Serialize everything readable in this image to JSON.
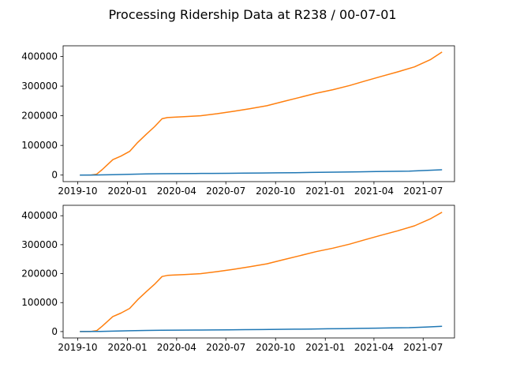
{
  "figure": {
    "title": "Processing Ridership Data at R238 / 00-07-01"
  },
  "colors": {
    "series_blue": "#1f77b4",
    "series_orange": "#ff7f0e",
    "axes": "#000000",
    "background": "#ffffff"
  },
  "chart_data": [
    {
      "type": "line",
      "position": "top",
      "title": "",
      "xlabel": "",
      "ylabel": "",
      "grid": false,
      "x_axis_type": "date",
      "xlim": [
        "2019-09-04",
        "2021-08-28"
      ],
      "ylim": [
        -22000,
        436000
      ],
      "x_ticks": [
        "2019-10",
        "2020-01",
        "2020-04",
        "2020-07",
        "2020-10",
        "2021-01",
        "2021-04",
        "2021-07"
      ],
      "y_ticks": [
        0,
        100000,
        200000,
        300000,
        400000
      ],
      "series": [
        {
          "color": "#ff7f0e",
          "x": [
            "2019-10-05",
            "2019-10-25",
            "2019-11-05",
            "2019-11-15",
            "2019-11-25",
            "2019-12-05",
            "2019-12-20",
            "2020-01-05",
            "2020-01-20",
            "2020-02-05",
            "2020-02-20",
            "2020-03-05",
            "2020-03-15",
            "2020-03-25",
            "2020-04-15",
            "2020-05-15",
            "2020-06-15",
            "2020-07-15",
            "2020-08-15",
            "2020-09-15",
            "2020-10-15",
            "2020-11-15",
            "2020-12-15",
            "2021-01-15",
            "2021-02-15",
            "2021-03-15",
            "2021-04-15",
            "2021-05-15",
            "2021-06-15",
            "2021-07-15",
            "2021-08-05"
          ],
          "y": [
            0,
            0,
            3000,
            18000,
            35000,
            52000,
            64000,
            80000,
            110000,
            138000,
            163000,
            190000,
            194000,
            195000,
            197000,
            200000,
            207000,
            215000,
            224000,
            234000,
            248000,
            262000,
            276000,
            288000,
            302000,
            317000,
            333000,
            348000,
            365000,
            390000,
            415000
          ]
        },
        {
          "color": "#1f77b4",
          "x": [
            "2019-10-05",
            "2019-11-05",
            "2019-12-05",
            "2020-01-05",
            "2020-02-05",
            "2020-03-05",
            "2020-04-05",
            "2020-05-05",
            "2020-06-05",
            "2020-07-05",
            "2020-08-05",
            "2020-09-05",
            "2020-10-05",
            "2020-11-05",
            "2020-12-05",
            "2021-01-05",
            "2021-02-05",
            "2021-03-05",
            "2021-04-05",
            "2021-05-05",
            "2021-06-05",
            "2021-07-05",
            "2021-08-05"
          ],
          "y": [
            0,
            300,
            1500,
            2800,
            3800,
            4600,
            5000,
            5300,
            5600,
            6000,
            6500,
            7000,
            7600,
            8200,
            8900,
            9600,
            10300,
            11000,
            11800,
            12600,
            13500,
            15500,
            18000
          ]
        }
      ]
    },
    {
      "type": "line",
      "position": "bottom",
      "title": "",
      "xlabel": "",
      "ylabel": "",
      "grid": false,
      "x_axis_type": "date",
      "xlim": [
        "2019-09-04",
        "2021-08-28"
      ],
      "ylim": [
        -22000,
        436000
      ],
      "x_ticks": [
        "2019-10",
        "2020-01",
        "2020-04",
        "2020-07",
        "2020-10",
        "2021-01",
        "2021-04",
        "2021-07"
      ],
      "y_ticks": [
        0,
        100000,
        200000,
        300000,
        400000
      ],
      "series": [
        {
          "color": "#ff7f0e",
          "x": [
            "2019-10-05",
            "2019-10-25",
            "2019-11-05",
            "2019-11-15",
            "2019-11-25",
            "2019-12-05",
            "2019-12-20",
            "2020-01-05",
            "2020-01-20",
            "2020-02-05",
            "2020-02-20",
            "2020-03-05",
            "2020-03-15",
            "2020-03-25",
            "2020-04-15",
            "2020-05-15",
            "2020-06-15",
            "2020-07-15",
            "2020-08-15",
            "2020-09-15",
            "2020-10-15",
            "2020-11-15",
            "2020-12-15",
            "2021-01-15",
            "2021-02-15",
            "2021-03-15",
            "2021-04-15",
            "2021-05-15",
            "2021-06-15",
            "2021-07-15",
            "2021-08-05"
          ],
          "y": [
            0,
            0,
            3000,
            18000,
            35000,
            52000,
            64000,
            80000,
            110000,
            138000,
            163000,
            190000,
            194000,
            195000,
            197000,
            200000,
            207000,
            215000,
            224000,
            234000,
            248000,
            262000,
            276000,
            288000,
            302000,
            317000,
            333000,
            348000,
            365000,
            390000,
            412000
          ]
        },
        {
          "color": "#1f77b4",
          "x": [
            "2019-10-05",
            "2019-11-05",
            "2019-12-05",
            "2020-01-05",
            "2020-02-05",
            "2020-03-05",
            "2020-04-05",
            "2020-05-05",
            "2020-06-05",
            "2020-07-05",
            "2020-08-05",
            "2020-09-05",
            "2020-10-05",
            "2020-11-05",
            "2020-12-05",
            "2021-01-05",
            "2021-02-05",
            "2021-03-05",
            "2021-04-05",
            "2021-05-05",
            "2021-06-05",
            "2021-07-05",
            "2021-08-05"
          ],
          "y": [
            0,
            300,
            1500,
            2800,
            3800,
            4600,
            5000,
            5300,
            5600,
            6000,
            6500,
            7000,
            7600,
            8200,
            8900,
            9600,
            10300,
            11000,
            11800,
            12600,
            13500,
            15500,
            18000
          ]
        }
      ]
    }
  ]
}
